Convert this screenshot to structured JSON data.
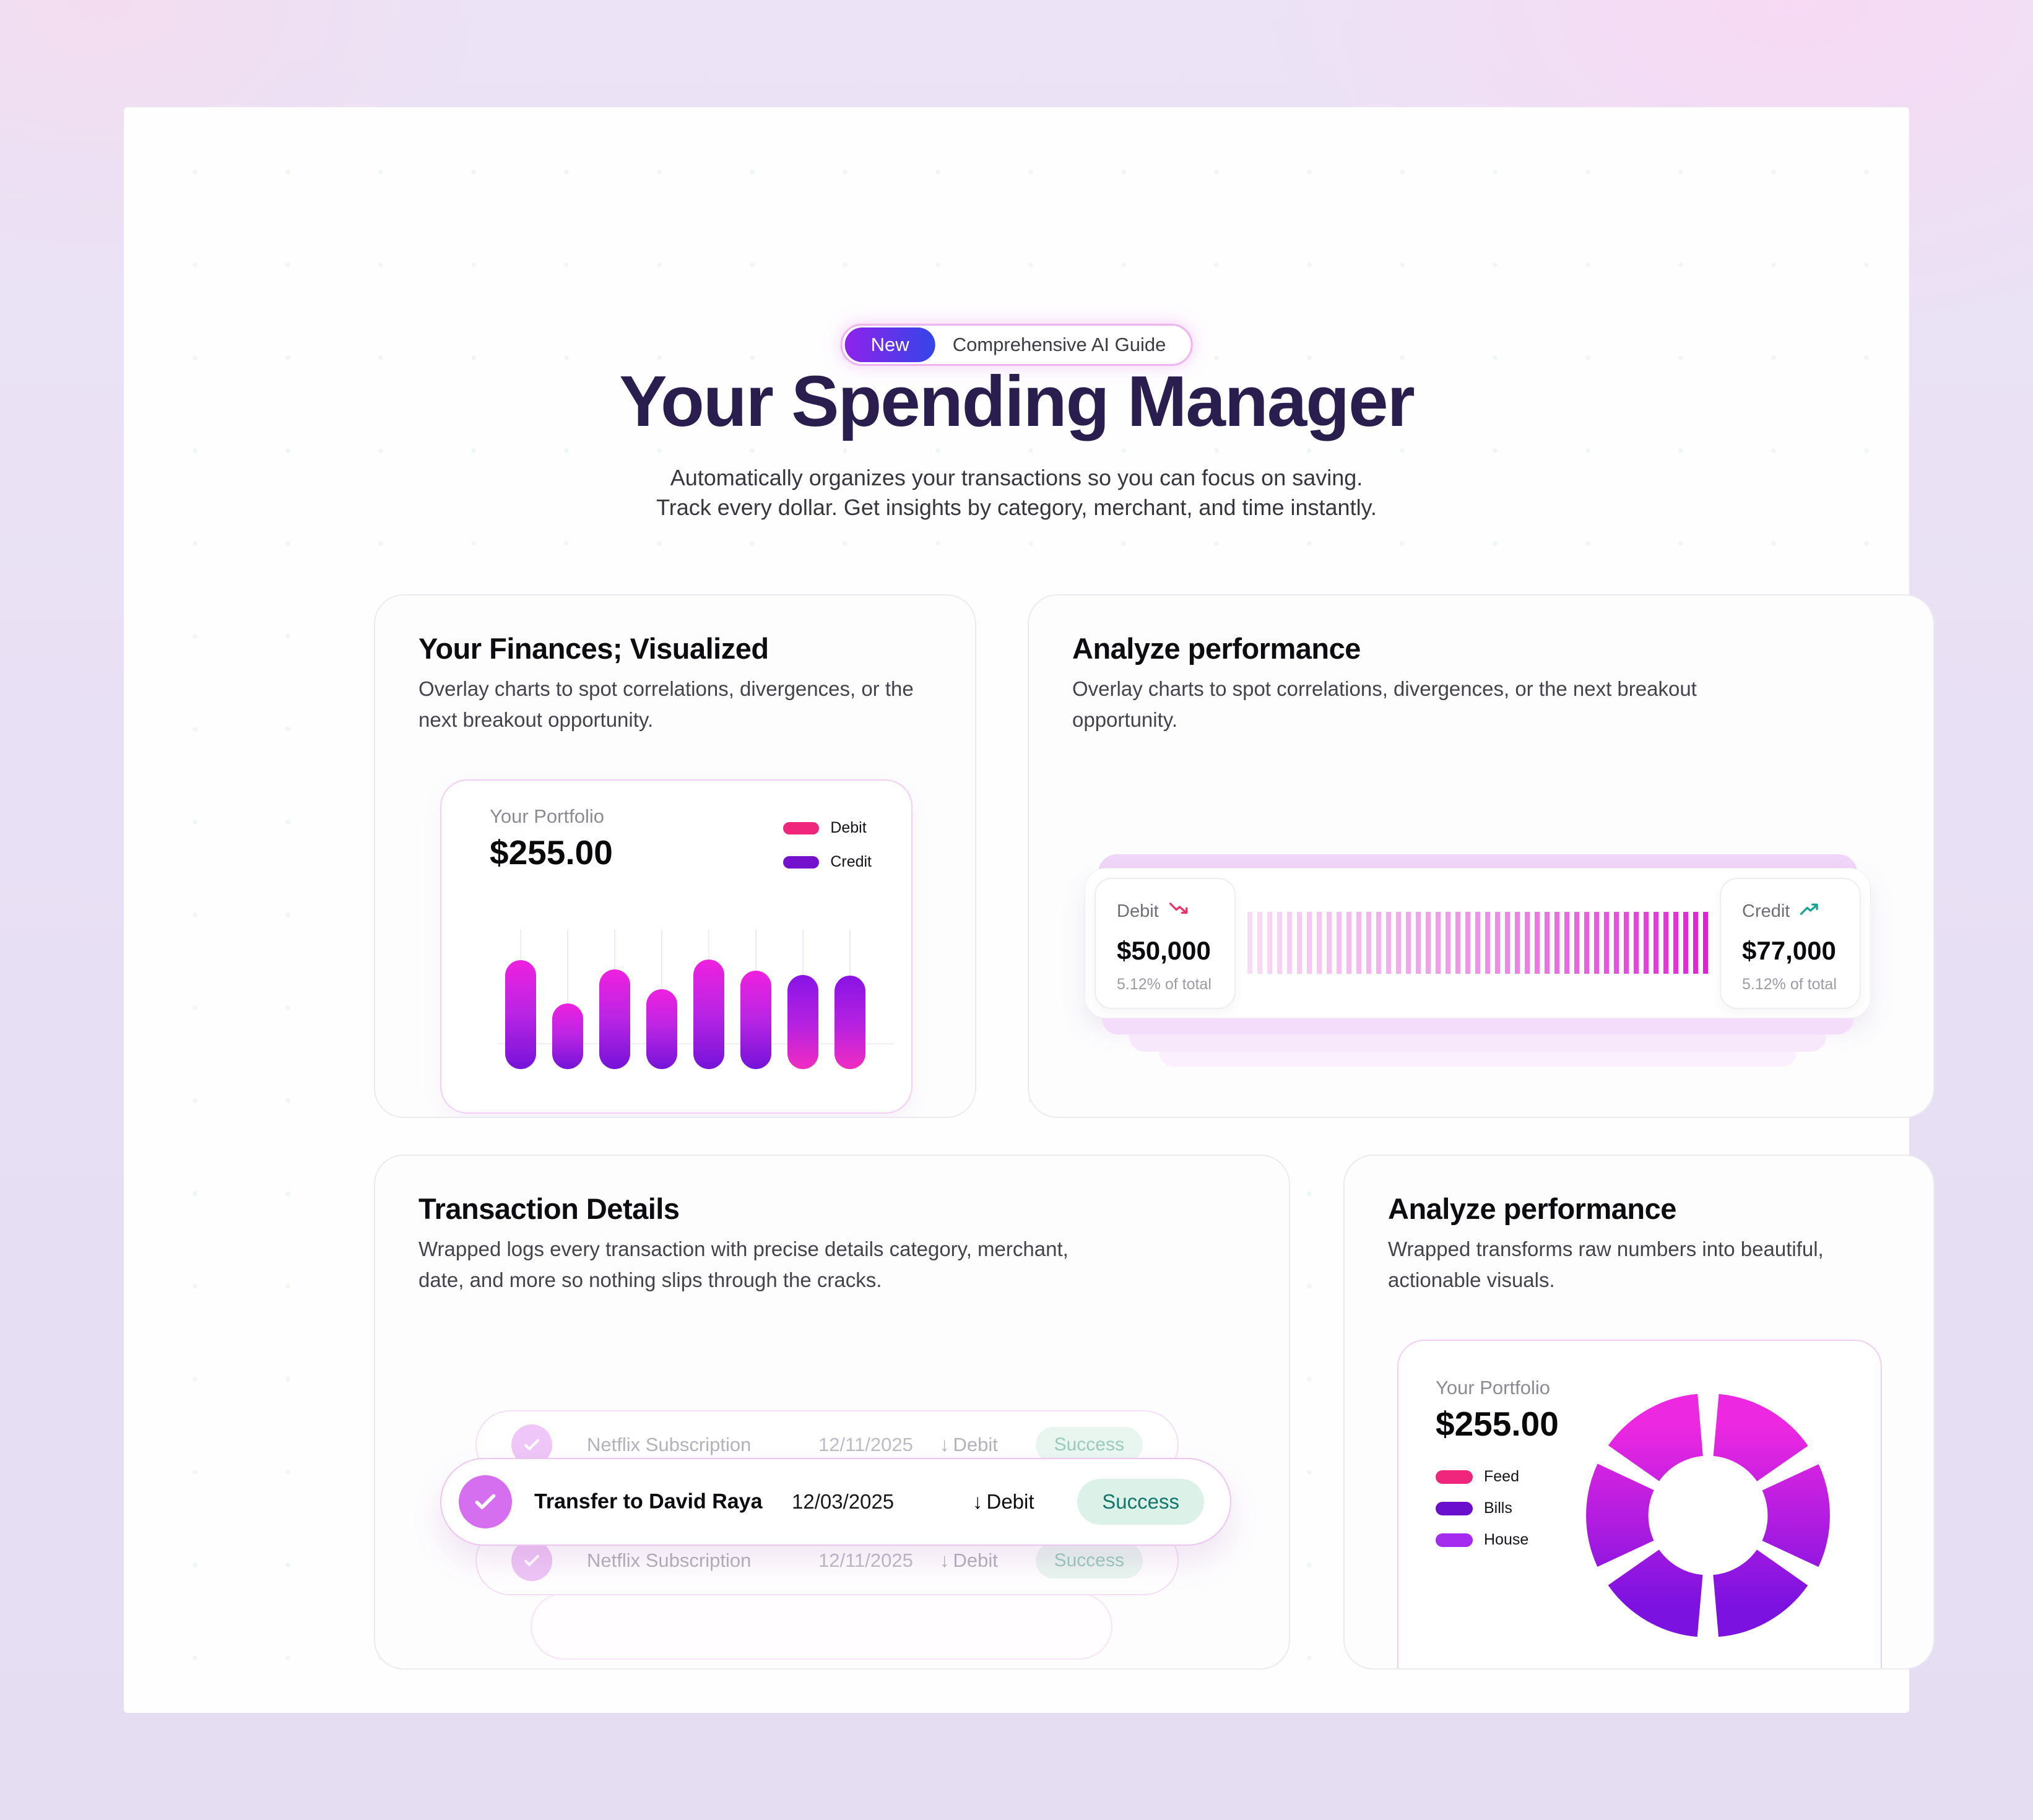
{
  "hero": {
    "badge_new": "New",
    "badge_text": "Comprehensive AI Guide",
    "title": "Your Spending Manager",
    "subtitle_line1": "Automatically organizes your transactions so you can focus on saving.",
    "subtitle_line2": "Track every dollar. Get insights by category, merchant, and time instantly."
  },
  "cards": {
    "finances": {
      "title": "Your Finances; Visualized",
      "description": "Overlay charts to spot correlations, divergences, or the next breakout opportunity.",
      "portfolio": {
        "label": "Your Portfolio",
        "value": "$255.00",
        "legend": [
          {
            "label": "Debit",
            "color": "#f0267c"
          },
          {
            "label": "Credit",
            "color": "#7411cc"
          }
        ]
      }
    },
    "performance_gauge": {
      "title": "Analyze performance",
      "description": "Overlay charts to spot correlations, divergences, or the next breakout opportunity.",
      "debit": {
        "label": "Debit",
        "value": "$50,000",
        "share": "5.12% of total",
        "trend": "down"
      },
      "credit": {
        "label": "Credit",
        "value": "$77,000",
        "share": "5.12% of total",
        "trend": "up"
      }
    },
    "transactions": {
      "title": "Transaction Details",
      "description": "Wrapped logs every transaction with precise details category, merchant, date, and more so nothing slips through the cracks.",
      "rows": [
        {
          "name": "Netflix Subscription",
          "date": "12/11/2025",
          "direction": "↓",
          "type": "Debit",
          "status": "Success",
          "emphasized": false
        },
        {
          "name": "Transfer to David Raya",
          "date": "12/03/2025",
          "direction": "↓",
          "type": "Debit",
          "status": "Success",
          "emphasized": true
        },
        {
          "name": "Netflix Subscription",
          "date": "12/11/2025",
          "direction": "↓",
          "type": "Debit",
          "status": "Success",
          "emphasized": false
        }
      ]
    },
    "performance_donut": {
      "title": "Analyze performance",
      "description": "Wrapped transforms raw numbers into beautiful, actionable visuals.",
      "portfolio": {
        "label": "Your Portfolio",
        "value": "$255.00",
        "legend": [
          {
            "label": "Feed",
            "color": "#f0267c"
          },
          {
            "label": "Bills",
            "color": "#6a10cc"
          },
          {
            "label": "House",
            "color": "#a62bf0"
          }
        ]
      }
    }
  },
  "chart_data": [
    {
      "type": "bar",
      "title": "Your Portfolio",
      "total_label": "$255.00",
      "legend": [
        "Debit",
        "Credit"
      ],
      "values": [
        176,
        106,
        161,
        129,
        177,
        159,
        152,
        151
      ],
      "reversed_gradient_bars": [
        6,
        7
      ],
      "ylim": [
        0,
        190
      ],
      "grid": "light vertical line per bar plus one horizontal baseline",
      "note": "decorative equalizer-style rounded bars, heights in screen px, magenta-to-purple gradient"
    },
    {
      "type": "gauge",
      "title": "Debit vs Credit striped meter",
      "left": {
        "label": "Debit",
        "value": 50000,
        "share_of_total": "5.12%",
        "trend": "down"
      },
      "right": {
        "label": "Credit",
        "value": 77000,
        "share_of_total": "5.12%",
        "trend": "up"
      },
      "note": "thin vertical stripes fading light pink to bright magenta, left to right"
    },
    {
      "type": "pie",
      "title": "Your Portfolio",
      "total_label": "$255.00",
      "categories": [
        "Feed",
        "Bills",
        "House"
      ],
      "values": [
        33.3,
        33.3,
        33.3
      ],
      "segments": 6,
      "note": "donut of 6 equal decorative segments, vertical magenta-to-purple gradient, gaps at 12/2/4/6/8/10 o'clock"
    }
  ],
  "colors": {
    "title_indigo": "#2a1e4e",
    "badge_gradient": [
      "#8f22ec",
      "#3445e8"
    ],
    "badge_border": "#efb3f0",
    "bar_gradient_top": "#ee21df",
    "bar_gradient_bottom": "#7513d8",
    "debit_pink": "#f0267c",
    "credit_purple": "#7411cc",
    "house_violet": "#a62bf0",
    "trend_down_pink": "#ee3366",
    "trend_up_teal": "#18a294",
    "success_text": "#13756a",
    "success_bg": "#dcf2e9",
    "check_circle": "#d66ef0",
    "stack_band": "#f0d6f8",
    "stripe_bright": "#e31fd9"
  }
}
